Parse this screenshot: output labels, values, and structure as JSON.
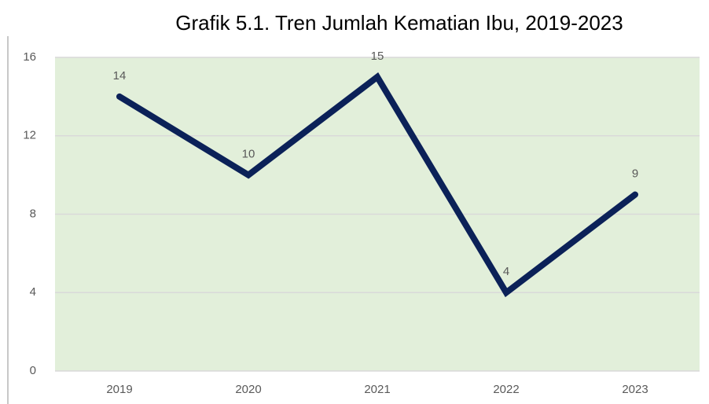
{
  "chart_data": {
    "type": "line",
    "title": "Grafik 5.1. Tren Jumlah Kematian Ibu, 2019-2023",
    "categories": [
      "2019",
      "2020",
      "2021",
      "2022",
      "2023"
    ],
    "values": [
      14,
      10,
      15,
      4,
      9
    ],
    "color": "#0b2158",
    "ylim": [
      0,
      16
    ],
    "yticks": [
      0,
      4,
      8,
      12,
      16
    ],
    "grid": true
  }
}
